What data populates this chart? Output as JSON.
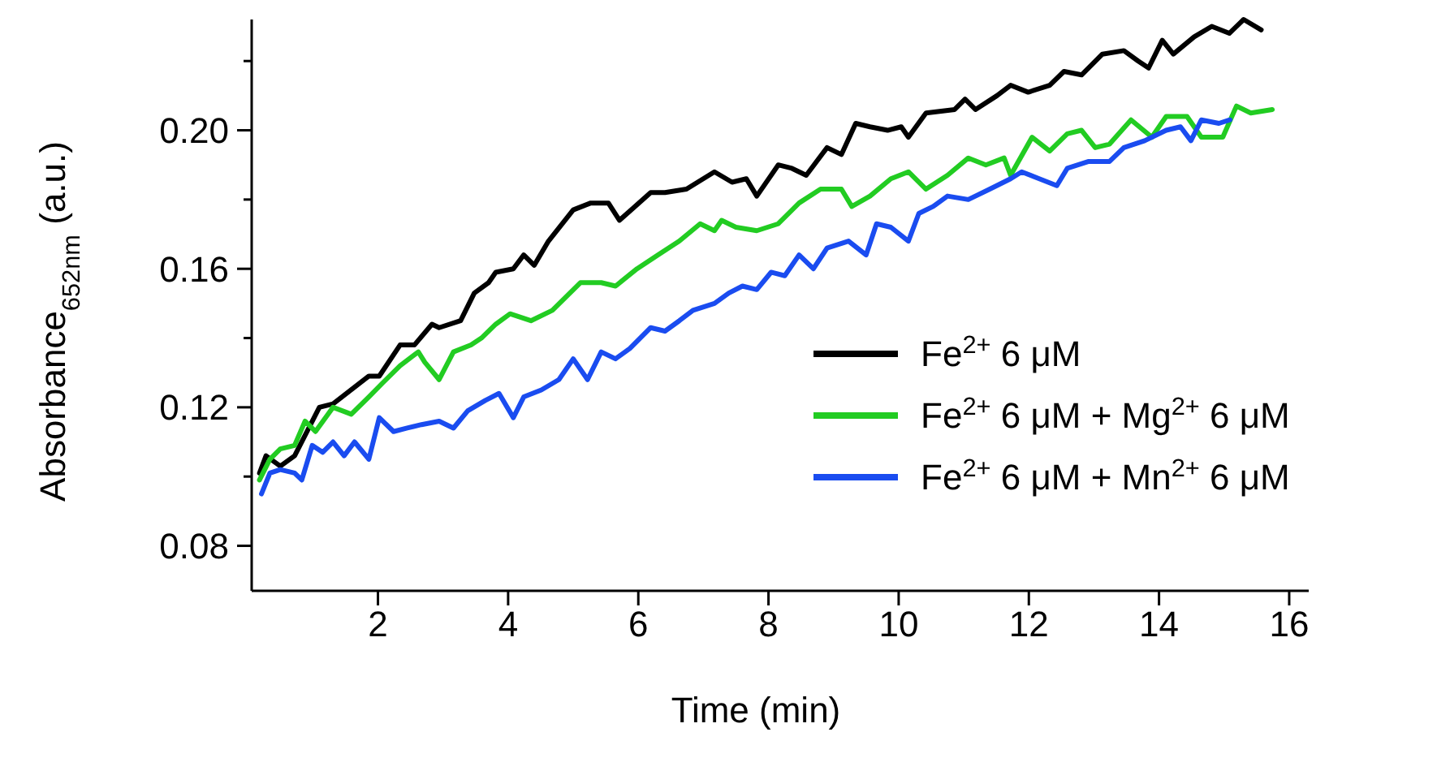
{
  "chart_data": {
    "type": "line",
    "xlabel": "Time (min)",
    "ylabel": "Absorbance$_{652nm}$ (a.u.)",
    "xlim": [
      0.06,
      16.3
    ],
    "ylim": [
      0.067,
      0.232
    ],
    "xticks": [
      2,
      4,
      6,
      8,
      10,
      12,
      14,
      16
    ],
    "yticks": [
      0.08,
      {
        "value": 0.1,
        "label": null
      },
      0.12,
      {
        "value": 0.14,
        "label": null
      },
      0.16,
      {
        "value": 0.18,
        "label": null
      },
      {
        "value": 0.2,
        "label": "0.20"
      },
      {
        "value": 0.22,
        "label": null
      }
    ],
    "grid": false,
    "legend": "bottom right",
    "line_style": "solid",
    "marker": "none",
    "series": [
      {
        "name": "Fe$^{2+}$ 6 μM",
        "color": "#000000",
        "x": [
          0.18,
          0.28,
          0.5,
          0.72,
          1.1,
          1.31,
          1.86,
          2.02,
          2.34,
          2.56,
          2.83,
          2.94,
          3.27,
          3.48,
          3.7,
          3.81,
          4.08,
          4.24,
          4.4,
          4.62,
          5.0,
          5.27,
          5.54,
          5.71,
          6.19,
          6.41,
          6.74,
          7.17,
          7.44,
          7.66,
          7.82,
          8.15,
          8.36,
          8.58,
          8.9,
          9.12,
          9.34,
          9.56,
          9.83,
          10.04,
          10.15,
          10.42,
          10.86,
          11.02,
          11.18,
          11.51,
          11.72,
          11.99,
          12.32,
          12.54,
          12.81,
          13.13,
          13.46,
          13.68,
          13.84,
          14.05,
          14.22,
          14.54,
          14.81,
          15.08,
          15.3,
          15.57
        ],
        "values": [
          0.101,
          0.106,
          0.103,
          0.106,
          0.12,
          0.121,
          0.129,
          0.129,
          0.138,
          0.138,
          0.144,
          0.143,
          0.145,
          0.153,
          0.156,
          0.159,
          0.16,
          0.164,
          0.161,
          0.168,
          0.177,
          0.179,
          0.179,
          0.174,
          0.182,
          0.182,
          0.183,
          0.188,
          0.185,
          0.186,
          0.181,
          0.19,
          0.189,
          0.187,
          0.195,
          0.193,
          0.202,
          0.201,
          0.2,
          0.201,
          0.198,
          0.205,
          0.206,
          0.209,
          0.206,
          0.21,
          0.213,
          0.211,
          0.213,
          0.217,
          0.216,
          0.222,
          0.223,
          0.22,
          0.218,
          0.226,
          0.222,
          0.227,
          0.23,
          0.228,
          0.232,
          0.229
        ]
      },
      {
        "name": "Fe$^{2+}$ 6 μM + Mg$^{2+}$ 6 μM",
        "color": "#22cc22",
        "x": [
          0.18,
          0.34,
          0.5,
          0.72,
          0.88,
          1.04,
          1.31,
          1.59,
          1.86,
          2.07,
          2.34,
          2.62,
          2.72,
          2.94,
          3.16,
          3.43,
          3.59,
          3.81,
          4.03,
          4.35,
          4.68,
          5.11,
          5.43,
          5.65,
          5.98,
          6.3,
          6.63,
          6.95,
          7.17,
          7.28,
          7.5,
          7.82,
          8.15,
          8.47,
          8.8,
          9.12,
          9.28,
          9.56,
          9.88,
          10.15,
          10.42,
          10.75,
          11.07,
          11.34,
          11.62,
          11.72,
          12.05,
          12.32,
          12.59,
          12.81,
          13.02,
          13.24,
          13.57,
          13.89,
          14.11,
          14.43,
          14.65,
          14.98,
          15.19,
          15.41,
          15.74
        ],
        "values": [
          0.099,
          0.105,
          0.108,
          0.109,
          0.116,
          0.113,
          0.12,
          0.118,
          0.123,
          0.127,
          0.132,
          0.136,
          0.133,
          0.128,
          0.136,
          0.138,
          0.14,
          0.144,
          0.147,
          0.145,
          0.148,
          0.156,
          0.156,
          0.155,
          0.16,
          0.164,
          0.168,
          0.173,
          0.171,
          0.174,
          0.172,
          0.171,
          0.173,
          0.179,
          0.183,
          0.183,
          0.178,
          0.181,
          0.186,
          0.188,
          0.183,
          0.187,
          0.192,
          0.19,
          0.192,
          0.187,
          0.198,
          0.194,
          0.199,
          0.2,
          0.195,
          0.196,
          0.203,
          0.198,
          0.204,
          0.204,
          0.198,
          0.198,
          0.207,
          0.205,
          0.206
        ]
      },
      {
        "name": "Fe$^{2+}$ 6 μM + Mn$^{2+}$ 6 μM",
        "color": "#1a4cf0",
        "x": [
          0.21,
          0.34,
          0.5,
          0.72,
          0.83,
          0.99,
          1.15,
          1.31,
          1.48,
          1.64,
          1.86,
          2.02,
          2.24,
          2.45,
          2.67,
          2.94,
          3.16,
          3.38,
          3.65,
          3.86,
          4.08,
          4.24,
          4.51,
          4.78,
          5.0,
          5.22,
          5.43,
          5.65,
          5.87,
          6.19,
          6.41,
          6.63,
          6.84,
          7.17,
          7.39,
          7.6,
          7.82,
          8.04,
          8.25,
          8.47,
          8.69,
          8.9,
          9.23,
          9.5,
          9.66,
          9.88,
          10.15,
          10.31,
          10.53,
          10.75,
          11.07,
          11.4,
          11.72,
          11.89,
          12.16,
          12.43,
          12.59,
          12.92,
          13.24,
          13.46,
          13.78,
          14.11,
          14.33,
          14.49,
          14.65,
          14.92,
          15.09
        ],
        "values": [
          0.095,
          0.101,
          0.102,
          0.101,
          0.099,
          0.109,
          0.107,
          0.11,
          0.106,
          0.11,
          0.105,
          0.117,
          0.113,
          0.114,
          0.115,
          0.116,
          0.114,
          0.119,
          0.122,
          0.124,
          0.117,
          0.123,
          0.125,
          0.128,
          0.134,
          0.128,
          0.136,
          0.134,
          0.137,
          0.143,
          0.142,
          0.145,
          0.148,
          0.15,
          0.153,
          0.155,
          0.154,
          0.159,
          0.158,
          0.164,
          0.16,
          0.166,
          0.168,
          0.164,
          0.173,
          0.172,
          0.168,
          0.176,
          0.178,
          0.181,
          0.18,
          0.183,
          0.186,
          0.188,
          0.186,
          0.184,
          0.189,
          0.191,
          0.191,
          0.195,
          0.197,
          0.2,
          0.201,
          0.197,
          0.203,
          0.202,
          0.203
        ]
      }
    ]
  }
}
